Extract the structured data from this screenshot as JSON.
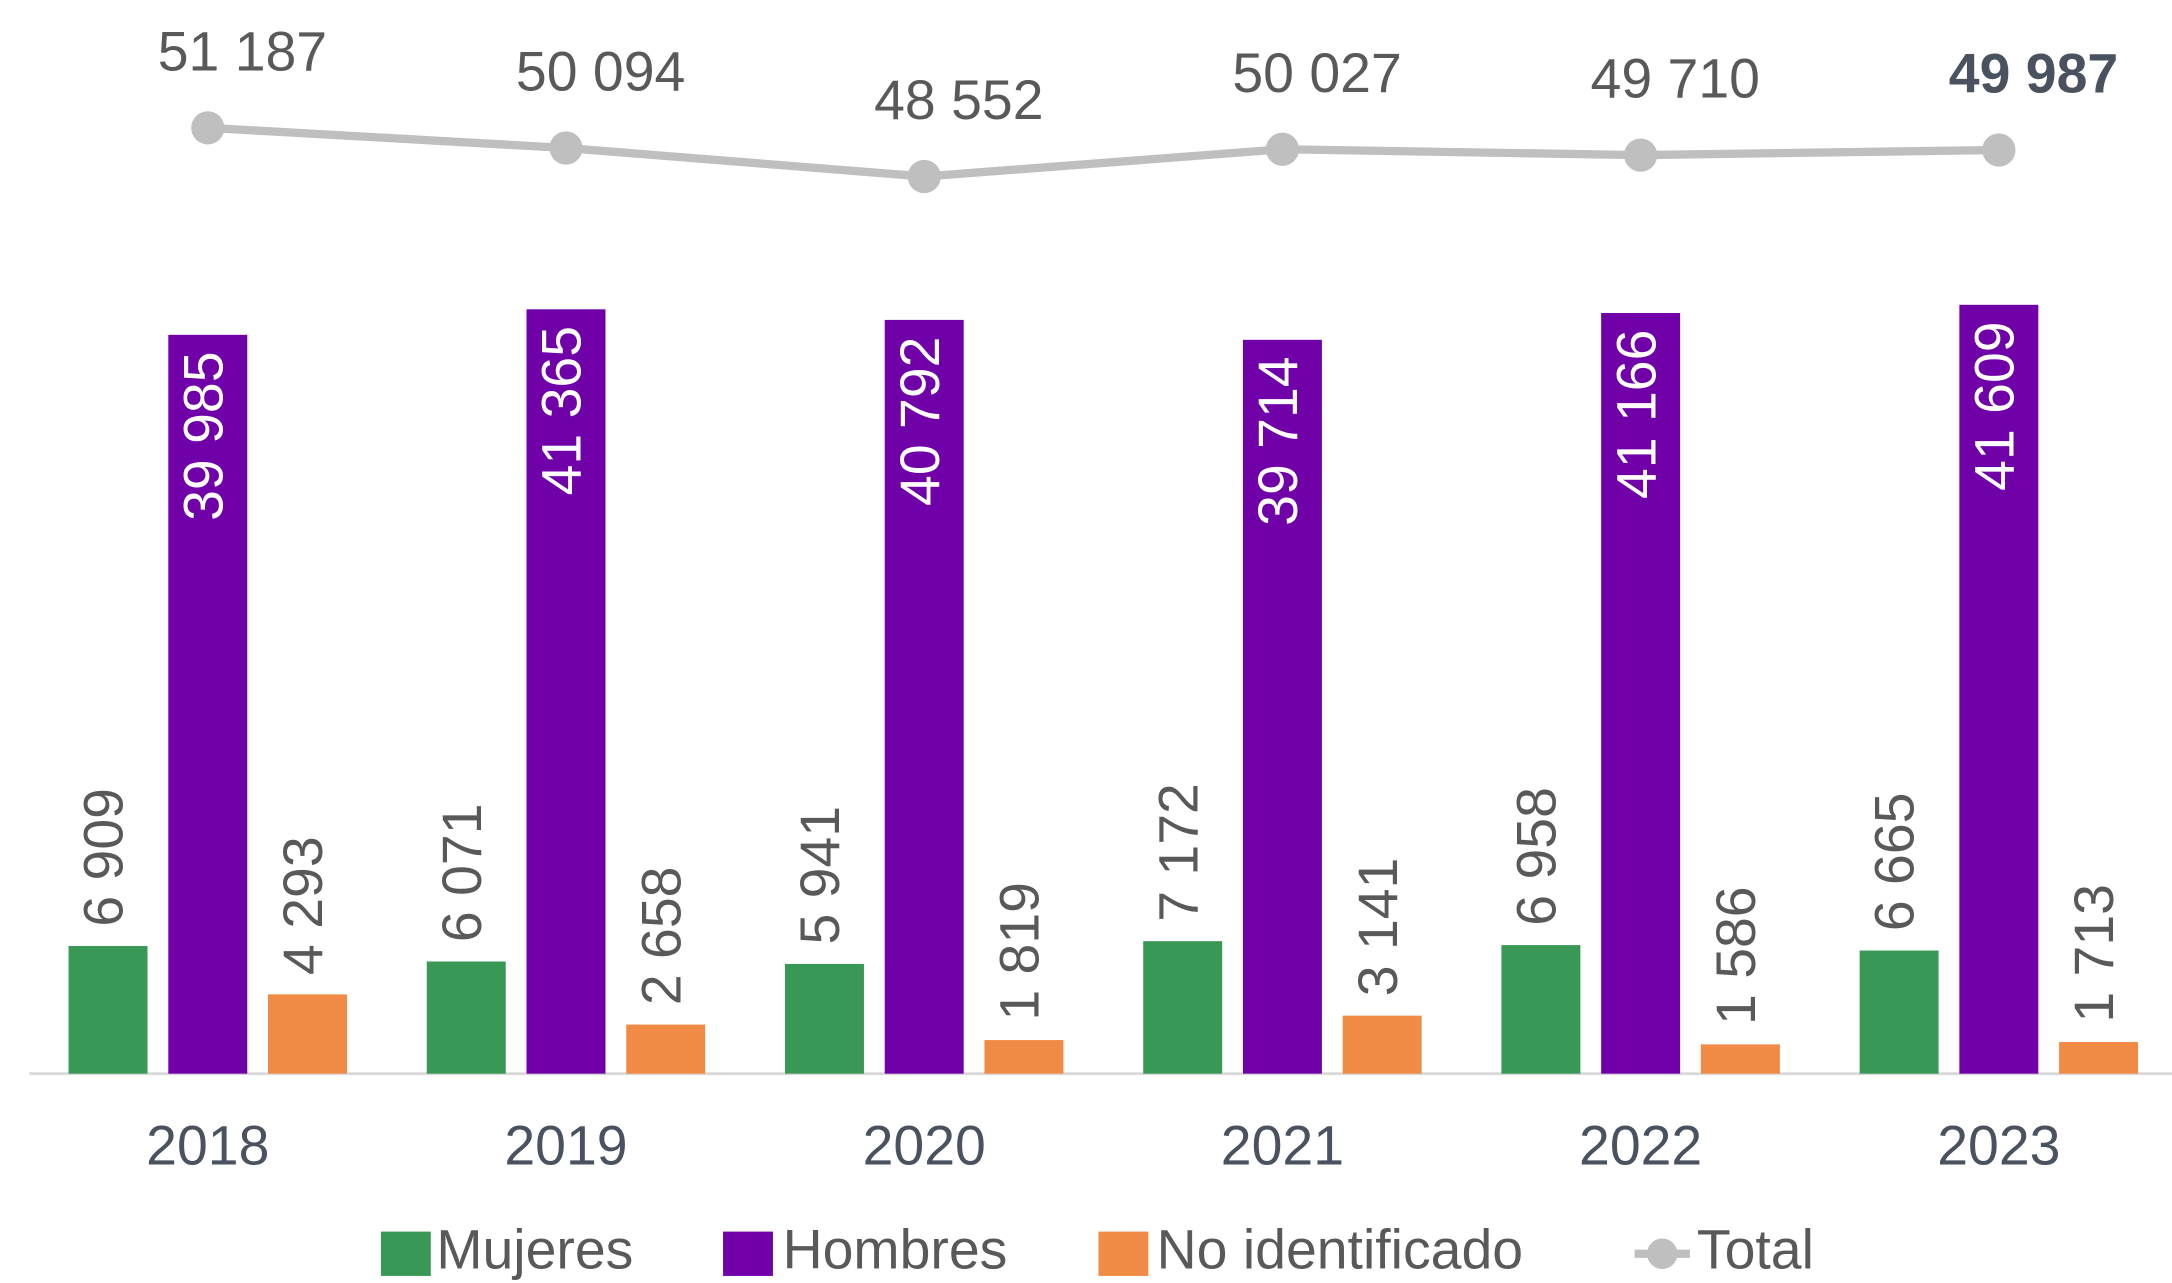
{
  "chart_data": {
    "type": "bar",
    "categories": [
      "2018",
      "2019",
      "2020",
      "2021",
      "2022",
      "2023"
    ],
    "ylim": [
      0,
      55000
    ],
    "series": [
      {
        "name": "Mujeres",
        "type": "bar",
        "color": "#3a9856",
        "values": [
          6909,
          6071,
          5941,
          7172,
          6958,
          6665
        ],
        "value_labels": [
          "6 909",
          "6 071",
          "5 941",
          "7 172",
          "6 958",
          "6 665"
        ]
      },
      {
        "name": "Hombres",
        "type": "bar",
        "color": "#7000a8",
        "values": [
          39985,
          41365,
          40792,
          39714,
          41166,
          41609
        ],
        "value_labels": [
          "39 985",
          "41 365",
          "40 792",
          "39 714",
          "41 166",
          "41 609"
        ]
      },
      {
        "name": "No identificado",
        "type": "bar",
        "color": "#f08a45",
        "values": [
          4293,
          2658,
          1819,
          3141,
          1586,
          1713
        ],
        "value_labels": [
          "4 293",
          "2 658",
          "1 819",
          "3 141",
          "1 586",
          "1 713"
        ]
      },
      {
        "name": "Total",
        "type": "line",
        "color": "#bfbfbf",
        "values": [
          51187,
          50094,
          48552,
          50027,
          49710,
          49987
        ],
        "value_labels": [
          "51 187",
          "50 094",
          "48 552",
          "50 027",
          "49 710",
          "49 987"
        ]
      }
    ]
  }
}
